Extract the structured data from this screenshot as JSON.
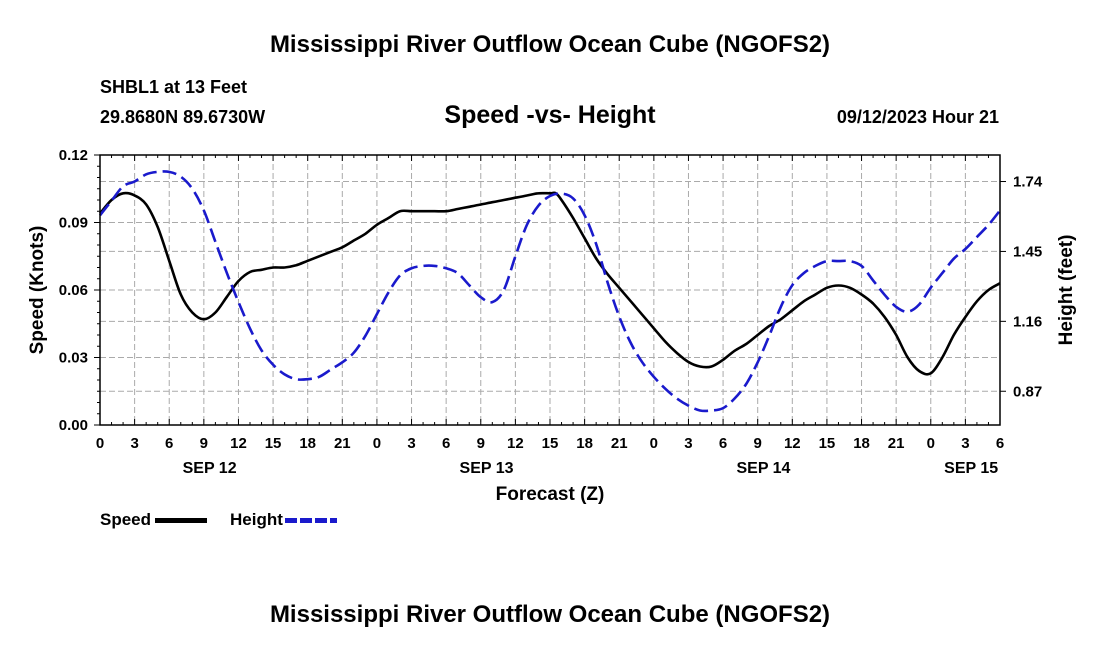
{
  "header": {
    "title": "Mississippi River Outflow Ocean Cube (NGOFS2)",
    "station": "SHBL1 at 13 Feet",
    "coords": "29.8680N  89.6730W",
    "datetime": "09/12/2023 Hour 21",
    "footer_title": "Mississippi River Outflow Ocean Cube (NGOFS2)"
  },
  "colors": {
    "speed": "#000000",
    "height": "#1a1acc",
    "grid": "#aaaaaa"
  },
  "chart_data": {
    "type": "line",
    "title": "Speed -vs- Height",
    "xlabel": "Forecast (Z)",
    "ylabel": "Speed (Knots)",
    "ylabel_right": "Height (feet)",
    "x_range_hours": [
      0,
      78
    ],
    "x_ticks": [
      {
        "h": 0,
        "label": "0"
      },
      {
        "h": 3,
        "label": "3"
      },
      {
        "h": 6,
        "label": "6"
      },
      {
        "h": 9,
        "label": "9"
      },
      {
        "h": 12,
        "label": "12"
      },
      {
        "h": 15,
        "label": "15"
      },
      {
        "h": 18,
        "label": "18"
      },
      {
        "h": 21,
        "label": "21"
      },
      {
        "h": 24,
        "label": "0"
      },
      {
        "h": 27,
        "label": "3"
      },
      {
        "h": 30,
        "label": "6"
      },
      {
        "h": 33,
        "label": "9"
      },
      {
        "h": 36,
        "label": "12"
      },
      {
        "h": 39,
        "label": "15"
      },
      {
        "h": 42,
        "label": "18"
      },
      {
        "h": 45,
        "label": "21"
      },
      {
        "h": 48,
        "label": "0"
      },
      {
        "h": 51,
        "label": "3"
      },
      {
        "h": 54,
        "label": "6"
      },
      {
        "h": 57,
        "label": "9"
      },
      {
        "h": 60,
        "label": "12"
      },
      {
        "h": 63,
        "label": "15"
      },
      {
        "h": 66,
        "label": "18"
      },
      {
        "h": 69,
        "label": "21"
      },
      {
        "h": 72,
        "label": "0"
      },
      {
        "h": 75,
        "label": "3"
      },
      {
        "h": 78,
        "label": "6"
      }
    ],
    "date_labels": [
      {
        "h": 9.5,
        "label": "SEP 12"
      },
      {
        "h": 33.5,
        "label": "SEP 13"
      },
      {
        "h": 57.5,
        "label": "SEP 14"
      },
      {
        "h": 75.5,
        "label": "SEP 15"
      }
    ],
    "ylim": [
      0,
      0.12
    ],
    "y_ticks": [
      "0.00",
      "0.03",
      "0.06",
      "0.09",
      "0.12"
    ],
    "y_right_range": [
      0.73,
      1.85
    ],
    "y_right_ticks": [
      "0.87",
      "1.16",
      "1.45",
      "1.74"
    ],
    "series": [
      {
        "name": "Speed",
        "axis": "left",
        "style": "solid",
        "points": [
          [
            0,
            0.094
          ],
          [
            1,
            0.1
          ],
          [
            2,
            0.103
          ],
          [
            3,
            0.102
          ],
          [
            4,
            0.098
          ],
          [
            5,
            0.088
          ],
          [
            6,
            0.073
          ],
          [
            7,
            0.058
          ],
          [
            8,
            0.05
          ],
          [
            9,
            0.047
          ],
          [
            10,
            0.05
          ],
          [
            11,
            0.057
          ],
          [
            12,
            0.064
          ],
          [
            13,
            0.068
          ],
          [
            14,
            0.069
          ],
          [
            15,
            0.07
          ],
          [
            16,
            0.07
          ],
          [
            17,
            0.071
          ],
          [
            18,
            0.073
          ],
          [
            19,
            0.075
          ],
          [
            20,
            0.077
          ],
          [
            21,
            0.079
          ],
          [
            22,
            0.082
          ],
          [
            23,
            0.085
          ],
          [
            24,
            0.089
          ],
          [
            25,
            0.092
          ],
          [
            26,
            0.095
          ],
          [
            27,
            0.095
          ],
          [
            28,
            0.095
          ],
          [
            29,
            0.095
          ],
          [
            30,
            0.095
          ],
          [
            31,
            0.096
          ],
          [
            32,
            0.097
          ],
          [
            33,
            0.098
          ],
          [
            34,
            0.099
          ],
          [
            35,
            0.1
          ],
          [
            36,
            0.101
          ],
          [
            37,
            0.102
          ],
          [
            38,
            0.103
          ],
          [
            39,
            0.103
          ],
          [
            39.5,
            0.103
          ],
          [
            40,
            0.1
          ],
          [
            41,
            0.092
          ],
          [
            42,
            0.083
          ],
          [
            43,
            0.074
          ],
          [
            44,
            0.067
          ],
          [
            45,
            0.061
          ],
          [
            46,
            0.055
          ],
          [
            47,
            0.049
          ],
          [
            48,
            0.043
          ],
          [
            49,
            0.037
          ],
          [
            50,
            0.032
          ],
          [
            51,
            0.028
          ],
          [
            52,
            0.026
          ],
          [
            53,
            0.026
          ],
          [
            54,
            0.029
          ],
          [
            55,
            0.033
          ],
          [
            56,
            0.036
          ],
          [
            57,
            0.04
          ],
          [
            58,
            0.044
          ],
          [
            59,
            0.047
          ],
          [
            60,
            0.051
          ],
          [
            61,
            0.055
          ],
          [
            62,
            0.058
          ],
          [
            63,
            0.061
          ],
          [
            64,
            0.062
          ],
          [
            65,
            0.061
          ],
          [
            66,
            0.058
          ],
          [
            67,
            0.054
          ],
          [
            68,
            0.048
          ],
          [
            69,
            0.04
          ],
          [
            70,
            0.03
          ],
          [
            71,
            0.024
          ],
          [
            72,
            0.023
          ],
          [
            73,
            0.03
          ],
          [
            74,
            0.04
          ],
          [
            75,
            0.048
          ],
          [
            76,
            0.055
          ],
          [
            77,
            0.06
          ],
          [
            78,
            0.063
          ]
        ]
      },
      {
        "name": "Height",
        "axis": "right",
        "style": "dashed",
        "points": [
          [
            0,
            1.6
          ],
          [
            1,
            1.66
          ],
          [
            2,
            1.72
          ],
          [
            3,
            1.74
          ],
          [
            4,
            1.77
          ],
          [
            5,
            1.78
          ],
          [
            6,
            1.78
          ],
          [
            7,
            1.76
          ],
          [
            8,
            1.71
          ],
          [
            9,
            1.62
          ],
          [
            10,
            1.49
          ],
          [
            11,
            1.36
          ],
          [
            12,
            1.24
          ],
          [
            13,
            1.13
          ],
          [
            14,
            1.04
          ],
          [
            15,
            0.98
          ],
          [
            16,
            0.94
          ],
          [
            17,
            0.92
          ],
          [
            18,
            0.92
          ],
          [
            19,
            0.93
          ],
          [
            20,
            0.96
          ],
          [
            21,
            0.99
          ],
          [
            22,
            1.03
          ],
          [
            23,
            1.1
          ],
          [
            24,
            1.19
          ],
          [
            25,
            1.28
          ],
          [
            26,
            1.35
          ],
          [
            27,
            1.38
          ],
          [
            28,
            1.39
          ],
          [
            29,
            1.39
          ],
          [
            30,
            1.38
          ],
          [
            31,
            1.36
          ],
          [
            32,
            1.31
          ],
          [
            33,
            1.26
          ],
          [
            34,
            1.24
          ],
          [
            35,
            1.29
          ],
          [
            36,
            1.43
          ],
          [
            37,
            1.56
          ],
          [
            38,
            1.64
          ],
          [
            39,
            1.68
          ],
          [
            40,
            1.69
          ],
          [
            41,
            1.67
          ],
          [
            42,
            1.6
          ],
          [
            43,
            1.48
          ],
          [
            44,
            1.32
          ],
          [
            45,
            1.18
          ],
          [
            46,
            1.07
          ],
          [
            47,
            0.99
          ],
          [
            48,
            0.93
          ],
          [
            49,
            0.88
          ],
          [
            50,
            0.84
          ],
          [
            51,
            0.81
          ],
          [
            52,
            0.79
          ],
          [
            53,
            0.79
          ],
          [
            54,
            0.8
          ],
          [
            55,
            0.84
          ],
          [
            56,
            0.9
          ],
          [
            57,
            0.99
          ],
          [
            58,
            1.1
          ],
          [
            59,
            1.22
          ],
          [
            60,
            1.31
          ],
          [
            61,
            1.36
          ],
          [
            62,
            1.39
          ],
          [
            63,
            1.41
          ],
          [
            64,
            1.41
          ],
          [
            65,
            1.41
          ],
          [
            66,
            1.39
          ],
          [
            67,
            1.33
          ],
          [
            68,
            1.27
          ],
          [
            69,
            1.22
          ],
          [
            70,
            1.2
          ],
          [
            71,
            1.23
          ],
          [
            72,
            1.3
          ],
          [
            73,
            1.36
          ],
          [
            74,
            1.42
          ],
          [
            75,
            1.46
          ],
          [
            76,
            1.51
          ],
          [
            77,
            1.56
          ],
          [
            78,
            1.62
          ]
        ]
      }
    ]
  },
  "legend": {
    "speed_label": "Speed",
    "height_label": "Height"
  }
}
